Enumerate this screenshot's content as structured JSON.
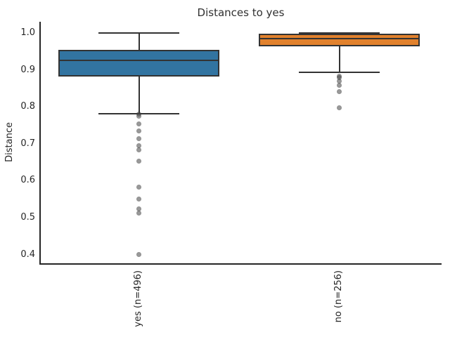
{
  "figure": {
    "background": "#ffffff"
  },
  "chart_data": {
    "type": "boxplot",
    "title": "Distances to yes",
    "ylabel": "Distance",
    "xlabel": "",
    "ylim": [
      0.371,
      1.03
    ],
    "yticks": [
      1.0,
      0.9,
      0.8,
      0.7,
      0.6,
      0.5,
      0.4
    ],
    "ytick_labels": [
      "1.0",
      "0.9",
      "0.8",
      "0.7",
      "0.6",
      "0.5",
      "0.4"
    ],
    "categories": [
      "yes (n=496)",
      "no (n=256)"
    ],
    "grid": false,
    "legend": "none",
    "boxes": [
      {
        "category": "yes (n=496)",
        "n": 496,
        "color": "#3274a1",
        "whisker_high": 1.0,
        "q3": 0.954,
        "median": 0.926,
        "q1": 0.882,
        "whisker_low": 0.782,
        "outliers": [
          0.781,
          0.774,
          0.753,
          0.734,
          0.713,
          0.694,
          0.683,
          0.653,
          0.582,
          0.55,
          0.523,
          0.512,
          0.401
        ]
      },
      {
        "category": "no (n=256)",
        "n": 256,
        "color": "#e1812c",
        "whisker_high": 1.0,
        "q3": 0.998,
        "median": 0.984,
        "q1": 0.963,
        "whisker_low": 0.894,
        "outliers": [
          0.884,
          0.879,
          0.869,
          0.859,
          0.842,
          0.798
        ]
      }
    ],
    "style": {
      "edge_color": "#333333",
      "flier_color": "#464646",
      "flier_opacity": 0.55,
      "spine_color": "#262626",
      "text_color": "#262626"
    }
  }
}
